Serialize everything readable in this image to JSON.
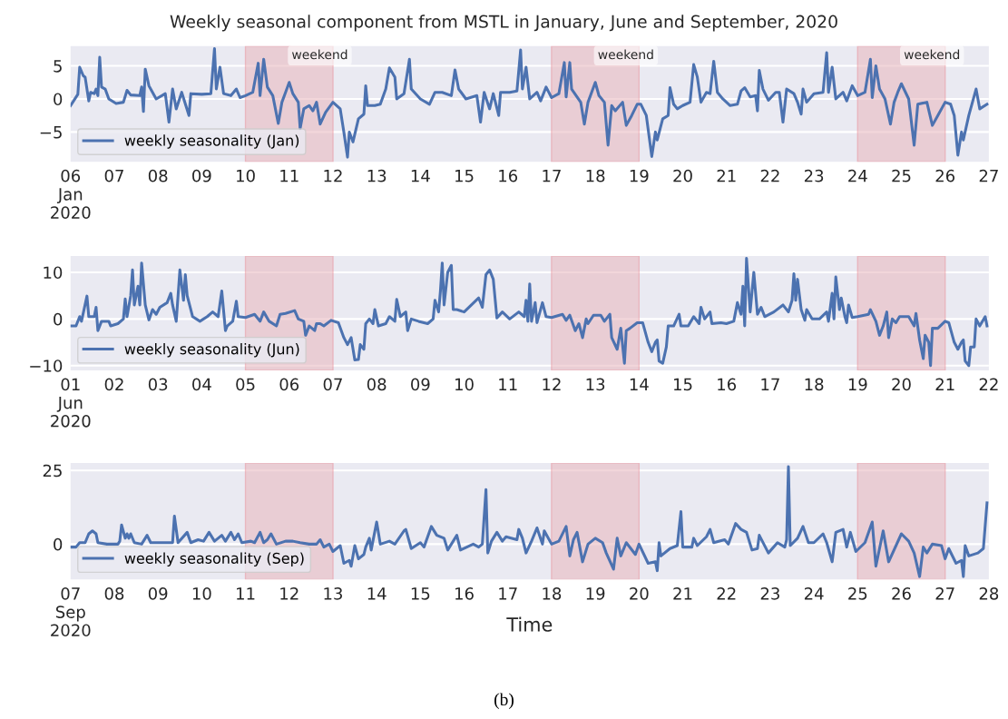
{
  "chart_data": [
    {
      "type": "line",
      "title": "Weekly seasonal component from MSTL in January, June and September, 2020",
      "legend": "bottom left",
      "grid": "y",
      "ylim": [
        -9.5,
        8.0
      ],
      "yticks": [
        {
          "value": -5,
          "label": "−5"
        },
        0,
        5
      ],
      "xlim": [
        "2020-01-06",
        "2020-01-27"
      ],
      "xticks": [
        {
          "value": "2020-01-06",
          "label": "06\nJan\n2020"
        },
        {
          "value": "2020-01-07",
          "label": "07"
        },
        {
          "value": "2020-01-08",
          "label": "08"
        },
        {
          "value": "2020-01-09",
          "label": "09"
        },
        {
          "value": "2020-01-10",
          "label": "10"
        },
        {
          "value": "2020-01-11",
          "label": "11"
        },
        {
          "value": "2020-01-12",
          "label": "12"
        },
        {
          "value": "2020-01-13",
          "label": "13"
        },
        {
          "value": "2020-01-14",
          "label": "14"
        },
        {
          "value": "2020-01-15",
          "label": "15"
        },
        {
          "value": "2020-01-16",
          "label": "16"
        },
        {
          "value": "2020-01-17",
          "label": "17"
        },
        {
          "value": "2020-01-18",
          "label": "18"
        },
        {
          "value": "2020-01-19",
          "label": "19"
        },
        {
          "value": "2020-01-20",
          "label": "20"
        },
        {
          "value": "2020-01-21",
          "label": "21"
        },
        {
          "value": "2020-01-22",
          "label": "22"
        },
        {
          "value": "2020-01-23",
          "label": "23"
        },
        {
          "value": "2020-01-24",
          "label": "24"
        },
        {
          "value": "2020-01-25",
          "label": "25"
        },
        {
          "value": "2020-01-26",
          "label": "26"
        },
        {
          "value": "2020-01-27",
          "label": "27"
        }
      ],
      "bands": [
        {
          "axis": "x",
          "from": "2020-01-10",
          "to": "2020-01-12",
          "label": "weekend",
          "color": "#e8b4bc"
        },
        {
          "axis": "x",
          "from": "2020-01-17",
          "to": "2020-01-19",
          "label": "weekend",
          "color": "#e8b4bc"
        },
        {
          "axis": "x",
          "from": "2020-01-24",
          "to": "2020-01-26",
          "label": "weekend",
          "color": "#e8b4bc"
        }
      ],
      "series": [
        {
          "name": "weekly seasonality (Jan)",
          "color": "#4c72b0",
          "x": [
            "2020-01-06T00:00",
            "2020-01-06T04:00",
            "2020-01-06T05:00",
            "2020-01-06T07:00",
            "2020-01-06T08:00",
            "2020-01-06T10:00",
            "2020-01-06T11:00",
            "2020-01-06T13:00",
            "2020-01-06T14:00",
            "2020-01-06T15:00",
            "2020-01-06T16:00",
            "2020-01-06T17:00",
            "2020-01-06T19:00",
            "2020-01-06T21:00",
            "2020-01-07T01:00",
            "2020-01-07T05:00",
            "2020-01-07T07:00",
            "2020-01-07T09:00",
            "2020-01-07T14:00",
            "2020-01-07T15:00",
            "2020-01-07T16:00",
            "2020-01-07T17:00",
            "2020-01-07T19:00",
            "2020-01-07T23:00",
            "2020-01-08T04:00",
            "2020-01-08T06:00",
            "2020-01-08T08:00",
            "2020-01-08T10:00",
            "2020-01-08T13:00",
            "2020-01-08T17:00",
            "2020-01-08T18:00",
            "2020-01-09T00:00",
            "2020-01-09T05:00",
            "2020-01-09T07:00",
            "2020-01-09T08:00",
            "2020-01-09T10:00",
            "2020-01-09T12:00",
            "2020-01-09T16:00",
            "2020-01-09T19:00",
            "2020-01-09T21:00",
            "2020-01-10T00:00",
            "2020-01-10T04:00",
            "2020-01-10T07:00",
            "2020-01-10T08:00",
            "2020-01-10T10:00",
            "2020-01-10T12:00",
            "2020-01-10T15:00",
            "2020-01-10T18:00",
            "2020-01-10T20:00",
            "2020-01-10T22:00",
            "2020-01-11T00:00",
            "2020-01-11T02:00",
            "2020-01-11T05:00",
            "2020-01-11T06:00",
            "2020-01-11T08:00",
            "2020-01-11T11:00",
            "2020-01-11T13:00",
            "2020-01-11T15:00",
            "2020-01-11T17:00",
            "2020-01-11T20:00",
            "2020-01-12T00:00",
            "2020-01-12T04:00",
            "2020-01-12T06:00",
            "2020-01-12T08:00",
            "2020-01-12T09:00",
            "2020-01-12T11:00",
            "2020-01-12T14:00",
            "2020-01-12T17:00",
            "2020-01-12T18:00",
            "2020-01-12T19:00",
            "2020-01-12T23:00",
            "2020-01-13T02:00",
            "2020-01-13T05:00",
            "2020-01-13T07:00",
            "2020-01-13T10:00",
            "2020-01-13T11:00",
            "2020-01-13T15:00",
            "2020-01-13T18:00",
            "2020-01-13T19:00",
            "2020-01-14T00:00",
            "2020-01-14T05:00",
            "2020-01-14T08:00",
            "2020-01-14T12:00",
            "2020-01-14T17:00",
            "2020-01-14T19:00",
            "2020-01-14T21:00",
            "2020-01-15T01:00",
            "2020-01-15T07:00",
            "2020-01-15T09:00",
            "2020-01-15T11:00",
            "2020-01-15T14:00",
            "2020-01-15T16:00",
            "2020-01-15T19:00",
            "2020-01-15T20:00",
            "2020-01-16T01:00",
            "2020-01-16T05:00",
            "2020-01-16T07:00",
            "2020-01-16T08:00",
            "2020-01-16T10:00",
            "2020-01-16T12:00",
            "2020-01-16T16:00",
            "2020-01-16T18:00",
            "2020-01-16T21:00",
            "2020-01-17T00:00",
            "2020-01-17T04:00",
            "2020-01-17T07:00",
            "2020-01-17T08:00",
            "2020-01-17T10:00",
            "2020-01-17T11:00",
            "2020-01-17T16:00",
            "2020-01-17T18:00",
            "2020-01-17T20:00",
            "2020-01-18T00:00",
            "2020-01-18T02:00",
            "2020-01-18T05:00",
            "2020-01-18T07:00",
            "2020-01-18T09:00",
            "2020-01-18T11:00",
            "2020-01-18T15:00",
            "2020-01-18T17:00",
            "2020-01-18T20:00",
            "2020-01-18T23:00",
            "2020-01-19T01:00",
            "2020-01-19T04:00",
            "2020-01-19T07:00",
            "2020-01-19T09:00",
            "2020-01-19T10:00",
            "2020-01-19T13:00",
            "2020-01-19T16:00",
            "2020-01-19T17:00",
            "2020-01-19T19:00",
            "2020-01-19T21:00",
            "2020-01-20T00:00",
            "2020-01-20T04:00",
            "2020-01-20T06:00",
            "2020-01-20T08:00",
            "2020-01-20T10:00",
            "2020-01-20T13:00",
            "2020-01-20T15:00",
            "2020-01-20T17:00",
            "2020-01-20T19:00",
            "2020-01-20T22:00",
            "2020-01-21T02:00",
            "2020-01-21T06:00",
            "2020-01-21T08:00",
            "2020-01-21T10:00",
            "2020-01-21T13:00",
            "2020-01-21T16:00",
            "2020-01-21T17:00",
            "2020-01-21T18:00",
            "2020-01-21T20:00",
            "2020-01-21T23:00",
            "2020-01-22T03:00",
            "2020-01-22T05:00",
            "2020-01-22T07:00",
            "2020-01-22T09:00",
            "2020-01-22T13:00",
            "2020-01-22T15:00",
            "2020-01-22T17:00",
            "2020-01-22T18:00",
            "2020-01-22T20:00",
            "2020-01-23T00:00",
            "2020-01-23T05:00",
            "2020-01-23T07:00",
            "2020-01-23T08:00",
            "2020-01-23T10:00",
            "2020-01-23T12:00",
            "2020-01-23T16:00",
            "2020-01-23T18:00",
            "2020-01-23T21:00",
            "2020-01-24T00:00",
            "2020-01-24T04:00",
            "2020-01-24T07:00",
            "2020-01-24T08:00",
            "2020-01-24T10:00",
            "2020-01-24T12:00",
            "2020-01-24T15:00",
            "2020-01-24T18:00",
            "2020-01-24T20:00",
            "2020-01-24T22:00",
            "2020-01-25T00:00",
            "2020-01-25T04:00",
            "2020-01-25T07:00",
            "2020-01-25T09:00",
            "2020-01-25T14:00",
            "2020-01-25T17:00",
            "2020-01-25T20:00",
            "2020-01-26T00:00",
            "2020-01-26T03:00",
            "2020-01-26T05:00",
            "2020-01-26T07:00",
            "2020-01-26T09:00",
            "2020-01-26T10:00",
            "2020-01-26T13:00",
            "2020-01-26T17:00",
            "2020-01-26T19:00",
            "2020-01-26T23:00"
          ],
          "values": [
            -1.0,
            0.7,
            4.8,
            3.5,
            3.3,
            -0.3,
            1.0,
            0.8,
            1.5,
            0.5,
            6.3,
            1.8,
            1.5,
            0,
            -0.7,
            -0.5,
            1.3,
            0.6,
            0.5,
            1.8,
            -1.9,
            4.5,
            2.0,
            0,
            0.8,
            -3.5,
            1.5,
            -1.5,
            1.0,
            -2.5,
            0.8,
            0.7,
            0.8,
            7.6,
            1.5,
            4.8,
            0.8,
            0.5,
            1.5,
            0.2,
            0.5,
            1.0,
            5.4,
            0.5,
            6.0,
            1.8,
            0.5,
            -3.7,
            -0.5,
            1.0,
            2.5,
            0.8,
            -0.5,
            -4.5,
            -1.5,
            -1.0,
            -1.8,
            -0.5,
            -3.8,
            -2.0,
            -0.5,
            -1.5,
            -5.0,
            -8.8,
            -5.0,
            -6.5,
            -3.0,
            -2.3,
            2.0,
            -1.0,
            -1.0,
            -0.8,
            1.5,
            4.7,
            3.3,
            0,
            0.8,
            6.0,
            1.5,
            0,
            -0.8,
            1.0,
            1.0,
            0.5,
            4.4,
            1.5,
            0,
            0.5,
            -3.5,
            1.0,
            -1.5,
            0.8,
            -2.5,
            1.0,
            1.0,
            1.2,
            7.4,
            1.5,
            4.8,
            0,
            1.0,
            -0.3,
            1.8,
            0.2,
            0.8,
            5.5,
            0.3,
            5.5,
            1.5,
            -0.5,
            -3.8,
            -0.5,
            2.5,
            0.5,
            -0.5,
            -7.0,
            -1.0,
            -1.8,
            -0.5,
            -4.0,
            -2.5,
            -0.8,
            -0.8,
            -2.5,
            -8.7,
            -5.0,
            -6.2,
            -3.0,
            -2.5,
            1.7,
            -0.8,
            -1.5,
            -1.0,
            -0.5,
            5.2,
            3.3,
            -0.5,
            1.0,
            0.8,
            5.7,
            1.0,
            0,
            -1.0,
            -0.8,
            1.2,
            1.7,
            0.3,
            0.5,
            -1.8,
            4.3,
            1.5,
            -0.2,
            1.0,
            1.0,
            -3.5,
            1.5,
            0.8,
            -0.5,
            -2.3,
            1.5,
            -0.5,
            0.8,
            1.0,
            7.0,
            1.0,
            4.8,
            0,
            1.0,
            -0.3,
            2.0,
            0.5,
            1.0,
            6.0,
            0.2,
            5.0,
            1.5,
            0,
            -3.8,
            -0.5,
            1.0,
            2.3,
            0,
            -7.0,
            -0.8,
            -0.5,
            -4.0,
            -2.5,
            -0.5,
            -0.8,
            -2.5,
            -8.5,
            -5.0,
            -6.2,
            -2.5,
            1.5,
            -1.5,
            -0.8
          ]
        }
      ]
    },
    {
      "type": "line",
      "legend": "bottom left",
      "grid": "y",
      "ylim": [
        -11,
        13.5
      ],
      "yticks": [
        {
          "value": -10,
          "label": "−10"
        },
        0,
        10
      ],
      "xlim": [
        "2020-06-01",
        "2020-06-22"
      ],
      "xticks": [
        {
          "value": "2020-06-01",
          "label": "01\nJun\n2020"
        },
        {
          "value": "2020-06-02",
          "label": "02"
        },
        {
          "value": "2020-06-03",
          "label": "03"
        },
        {
          "value": "2020-06-04",
          "label": "04"
        },
        {
          "value": "2020-06-05",
          "label": "05"
        },
        {
          "value": "2020-06-06",
          "label": "06"
        },
        {
          "value": "2020-06-07",
          "label": "07"
        },
        {
          "value": "2020-06-08",
          "label": "08"
        },
        {
          "value": "2020-06-09",
          "label": "09"
        },
        {
          "value": "2020-06-10",
          "label": "10"
        },
        {
          "value": "2020-06-11",
          "label": "11"
        },
        {
          "value": "2020-06-12",
          "label": "12"
        },
        {
          "value": "2020-06-13",
          "label": "13"
        },
        {
          "value": "2020-06-14",
          "label": "14"
        },
        {
          "value": "2020-06-15",
          "label": "15"
        },
        {
          "value": "2020-06-16",
          "label": "16"
        },
        {
          "value": "2020-06-17",
          "label": "17"
        },
        {
          "value": "2020-06-18",
          "label": "18"
        },
        {
          "value": "2020-06-19",
          "label": "19"
        },
        {
          "value": "2020-06-20",
          "label": "20"
        },
        {
          "value": "2020-06-21",
          "label": "21"
        },
        {
          "value": "2020-06-22",
          "label": "22"
        }
      ],
      "bands": [
        {
          "axis": "x",
          "from": "2020-06-05",
          "to": "2020-06-07",
          "color": "#e8b4bc"
        },
        {
          "axis": "x",
          "from": "2020-06-12",
          "to": "2020-06-14",
          "color": "#e8b4bc"
        },
        {
          "axis": "x",
          "from": "2020-06-19",
          "to": "2020-06-21",
          "color": "#e8b4bc"
        }
      ],
      "series": [
        {
          "name": "weekly seasonality (Jun)",
          "color": "#4c72b0",
          "x": [
            "2020-06-01T00:00",
            "2020-06-01T03:00",
            "2020-06-01T05:00",
            "2020-06-01T06:00",
            "2020-06-01T09:00",
            "2020-06-01T10:00",
            "2020-06-01T13:00",
            "2020-06-01T14:00",
            "2020-06-01T15:00",
            "2020-06-01T17:00",
            "2020-06-01T21:00",
            "2020-06-01T22:00",
            "2020-06-02T02:00",
            "2020-06-02T05:00",
            "2020-06-02T06:00",
            "2020-06-02T07:00",
            "2020-06-02T09:00",
            "2020-06-02T10:00",
            "2020-06-02T11:00",
            "2020-06-02T13:00",
            "2020-06-02T14:00",
            "2020-06-02T15:00",
            "2020-06-02T17:00",
            "2020-06-02T19:00",
            "2020-06-02T21:00",
            "2020-06-02T23:00",
            "2020-06-03T01:00",
            "2020-06-03T05:00",
            "2020-06-03T07:00",
            "2020-06-03T08:00",
            "2020-06-03T10:00",
            "2020-06-03T12:00",
            "2020-06-03T14:00",
            "2020-06-03T15:00",
            "2020-06-03T16:00",
            "2020-06-03T19:00",
            "2020-06-03T23:00",
            "2020-06-04T03:00",
            "2020-06-04T06:00",
            "2020-06-04T09:00",
            "2020-06-04T11:00",
            "2020-06-04T13:00",
            "2020-06-04T14:00",
            "2020-06-04T17:00",
            "2020-06-04T19:00",
            "2020-06-04T20:00",
            "2020-06-05T00:00",
            "2020-06-05T05:00",
            "2020-06-05T08:00",
            "2020-06-05T10:00",
            "2020-06-05T13:00",
            "2020-06-05T17:00",
            "2020-06-05T19:00",
            "2020-06-05T22:00",
            "2020-06-06T03:00",
            "2020-06-06T05:00",
            "2020-06-06T08:00",
            "2020-06-06T09:00",
            "2020-06-06T11:00",
            "2020-06-06T14:00",
            "2020-06-06T15:00",
            "2020-06-06T17:00",
            "2020-06-06T19:00",
            "2020-06-06T23:00",
            "2020-06-07T03:00",
            "2020-06-07T06:00",
            "2020-06-07T08:00",
            "2020-06-07T10:00",
            "2020-06-07T12:00",
            "2020-06-07T14:00",
            "2020-06-07T15:00",
            "2020-06-07T17:00",
            "2020-06-07T18:00",
            "2020-06-07T20:00",
            "2020-06-07T22:00",
            "2020-06-07T23:00",
            "2020-06-08T01:00",
            "2020-06-08T05:00",
            "2020-06-08T07:00",
            "2020-06-08T10:00",
            "2020-06-08T11:00",
            "2020-06-08T13:00",
            "2020-06-08T16:00",
            "2020-06-08T17:00",
            "2020-06-08T19:00",
            "2020-06-08T23:00",
            "2020-06-09T04:00",
            "2020-06-09T07:00",
            "2020-06-09T08:00",
            "2020-06-09T10:00",
            "2020-06-09T11:00",
            "2020-06-09T12:00",
            "2020-06-09T13:00",
            "2020-06-09T15:00",
            "2020-06-09T17:00",
            "2020-06-09T18:00",
            "2020-06-09T20:00",
            "2020-06-10T00:00",
            "2020-06-10T04:00",
            "2020-06-10T08:00",
            "2020-06-10T10:00",
            "2020-06-10T12:00",
            "2020-06-10T14:00",
            "2020-06-10T16:00",
            "2020-06-10T18:00",
            "2020-06-10T21:00",
            "2020-06-11T01:00",
            "2020-06-11T06:00",
            "2020-06-11T09:00",
            "2020-06-11T10:00",
            "2020-06-11T11:00",
            "2020-06-11T12:00",
            "2020-06-11T13:00",
            "2020-06-11T15:00",
            "2020-06-11T16:00",
            "2020-06-11T19:00",
            "2020-06-11T21:00",
            "2020-06-12T00:00",
            "2020-06-12T06:00",
            "2020-06-12T08:00",
            "2020-06-12T10:00",
            "2020-06-12T13:00",
            "2020-06-12T15:00",
            "2020-06-12T17:00",
            "2020-06-12T19:00",
            "2020-06-12T20:00",
            "2020-06-12T23:00",
            "2020-06-13T03:00",
            "2020-06-13T05:00",
            "2020-06-13T08:00",
            "2020-06-13T09:00",
            "2020-06-13T12:00",
            "2020-06-13T14:00",
            "2020-06-13T16:00",
            "2020-06-13T17:00",
            "2020-06-13T19:00",
            "2020-06-13T23:00",
            "2020-06-14T02:00",
            "2020-06-14T05:00",
            "2020-06-14T07:00",
            "2020-06-14T09:00",
            "2020-06-14T10:00",
            "2020-06-14T11:00",
            "2020-06-14T13:00",
            "2020-06-14T15:00",
            "2020-06-14T16:00",
            "2020-06-14T19:00",
            "2020-06-14T22:00",
            "2020-06-14T23:00",
            "2020-06-15T03:00",
            "2020-06-15T06:00",
            "2020-06-15T09:00",
            "2020-06-15T10:00",
            "2020-06-15T12:00",
            "2020-06-15T15:00",
            "2020-06-15T16:00",
            "2020-06-15T21:00",
            "2020-06-16T00:00",
            "2020-06-16T04:00",
            "2020-06-16T06:00",
            "2020-06-16T08:00",
            "2020-06-16T09:00",
            "2020-06-16T10:00",
            "2020-06-16T11:00",
            "2020-06-16T13:00",
            "2020-06-16T15:00",
            "2020-06-16T17:00",
            "2020-06-16T19:00",
            "2020-06-16T21:00",
            "2020-06-17T02:00",
            "2020-06-17T07:00",
            "2020-06-17T10:00",
            "2020-06-17T12:00",
            "2020-06-17T13:00",
            "2020-06-17T14:00",
            "2020-06-17T15:00",
            "2020-06-17T17:00",
            "2020-06-17T19:00",
            "2020-06-17T20:00",
            "2020-06-17T23:00",
            "2020-06-18T03:00",
            "2020-06-18T07:00",
            "2020-06-18T08:00",
            "2020-06-18T10:00",
            "2020-06-18T11:00",
            "2020-06-18T12:00",
            "2020-06-18T14:00",
            "2020-06-18T15:00",
            "2020-06-18T17:00",
            "2020-06-18T18:00",
            "2020-06-18T19:00",
            "2020-06-18T21:00",
            "2020-06-19T00:00",
            "2020-06-19T06:00",
            "2020-06-19T07:00",
            "2020-06-19T10:00",
            "2020-06-19T12:00",
            "2020-06-19T14:00",
            "2020-06-19T16:00",
            "2020-06-19T17:00",
            "2020-06-19T19:00",
            "2020-06-19T21:00",
            "2020-06-19T23:00",
            "2020-06-20T04:00",
            "2020-06-20T07:00",
            "2020-06-20T08:00",
            "2020-06-20T10:00",
            "2020-06-20T12:00",
            "2020-06-20T13:00",
            "2020-06-20T15:00",
            "2020-06-20T16:00",
            "2020-06-20T17:00",
            "2020-06-20T20:00",
            "2020-06-21T00:00",
            "2020-06-21T02:00",
            "2020-06-21T05:00",
            "2020-06-21T07:00",
            "2020-06-21T09:00",
            "2020-06-21T10:00",
            "2020-06-21T11:00",
            "2020-06-21T13:00",
            "2020-06-21T14:00",
            "2020-06-21T16:00",
            "2020-06-21T17:00",
            "2020-06-21T19:00",
            "2020-06-21T22:00",
            "2020-06-21T23:00"
          ],
          "values": [
            -1.5,
            -1.5,
            0.5,
            -0.5,
            4.9,
            0.5,
            0.5,
            2.5,
            -2.5,
            -0.5,
            -0.5,
            -1.5,
            -1.0,
            0,
            4.3,
            0.5,
            5.0,
            10.5,
            3.0,
            7.0,
            3.0,
            12.0,
            3.0,
            -0.2,
            2.0,
            1.0,
            2.5,
            3.5,
            5.5,
            3.0,
            -0.5,
            10.5,
            4.0,
            9.5,
            5.0,
            0.5,
            -0.5,
            0.5,
            1.5,
            0.5,
            6.0,
            -2.5,
            -1.5,
            -0.5,
            3.8,
            0.5,
            0.3,
            1.0,
            -0.5,
            1.5,
            -0.5,
            -1.5,
            1.0,
            1.2,
            1.8,
            0,
            -0.5,
            -3.5,
            -1.5,
            -2.5,
            -1.0,
            -1.0,
            -1.5,
            -0.3,
            -0.8,
            -4.0,
            -5.5,
            -4.0,
            -8.8,
            -8.7,
            -5.5,
            -6.5,
            -1.0,
            0,
            -1.0,
            2.0,
            -1.5,
            -1.0,
            0.5,
            -0.5,
            4.2,
            0.5,
            1.5,
            -2.5,
            0,
            -0.5,
            -1.0,
            0,
            4.0,
            1.5,
            6.0,
            12.0,
            3.0,
            10.0,
            11.5,
            2.0,
            2.0,
            1.5,
            3.0,
            4.5,
            2.5,
            9.5,
            10.5,
            8.5,
            0.2,
            1.5,
            0,
            1.5,
            0.5,
            4.0,
            -0.5,
            7.5,
            -0.5,
            3.5,
            -0.8,
            3.5,
            0.5,
            0.3,
            1.0,
            -0.3,
            0.8,
            -2.5,
            -1.0,
            -4.0,
            0,
            -1.0,
            0.8,
            0.8,
            -0.5,
            1.0,
            -4.0,
            -6.5,
            -2.0,
            -9.5,
            -2.5,
            -2.0,
            -0.8,
            -0.8,
            -5.0,
            -7.0,
            -5.0,
            -4.5,
            -9.0,
            -9.5,
            -6.0,
            -1.5,
            -1.5,
            1.0,
            -1.5,
            -1.5,
            0.5,
            -1.0,
            2.5,
            0,
            1.5,
            -1.0,
            -0.8,
            -1.0,
            -0.5,
            3.5,
            1.0,
            7.0,
            -1.5,
            13.0,
            1.5,
            10.0,
            1.0,
            2.5,
            0.5,
            1.5,
            3.0,
            1.5,
            4.0,
            9.7,
            4.0,
            8.5,
            2.0,
            -0.3,
            2.0,
            0,
            0,
            1.5,
            -0.5,
            5.5,
            0,
            9.0,
            2.0,
            4.5,
            0.5,
            -0.8,
            3.0,
            0.3,
            0.5,
            1.0,
            2.0,
            -0.5,
            -3.5,
            -1.5,
            1.5,
            -4.0,
            0,
            -0.8,
            0.5,
            0.5,
            -1.5,
            1.2,
            -4.5,
            -8.5,
            -3.5,
            -5.0,
            -10.0,
            -2.0,
            -2.0,
            -0.5,
            -0.8,
            -5.0,
            -6.5,
            -5.0,
            -4.5,
            -9.0,
            -10.0,
            -6.0,
            -6.0,
            0,
            -1.5,
            0.5,
            -1.5
          ]
        }
      ]
    },
    {
      "type": "line",
      "xlabel": "Time",
      "annotations": [
        "(b)"
      ],
      "legend": "bottom left",
      "grid": "y",
      "ylim": [
        -12,
        27.5
      ],
      "yticks": [
        0,
        25
      ],
      "xlim": [
        "2020-09-07",
        "2020-09-28"
      ],
      "xticks": [
        {
          "value": "2020-09-07",
          "label": "07\nSep\n2020"
        },
        {
          "value": "2020-09-08",
          "label": "08"
        },
        {
          "value": "2020-09-09",
          "label": "09"
        },
        {
          "value": "2020-09-10",
          "label": "10"
        },
        {
          "value": "2020-09-11",
          "label": "11"
        },
        {
          "value": "2020-09-12",
          "label": "12"
        },
        {
          "value": "2020-09-13",
          "label": "13"
        },
        {
          "value": "2020-09-14",
          "label": "14"
        },
        {
          "value": "2020-09-15",
          "label": "15"
        },
        {
          "value": "2020-09-16",
          "label": "16"
        },
        {
          "value": "2020-09-17",
          "label": "17"
        },
        {
          "value": "2020-09-18",
          "label": "18"
        },
        {
          "value": "2020-09-19",
          "label": "19"
        },
        {
          "value": "2020-09-20",
          "label": "20"
        },
        {
          "value": "2020-09-21",
          "label": "21"
        },
        {
          "value": "2020-09-22",
          "label": "22"
        },
        {
          "value": "2020-09-23",
          "label": "23"
        },
        {
          "value": "2020-09-24",
          "label": "24"
        },
        {
          "value": "2020-09-25",
          "label": "25"
        },
        {
          "value": "2020-09-26",
          "label": "26"
        },
        {
          "value": "2020-09-27",
          "label": "27"
        },
        {
          "value": "2020-09-28",
          "label": "28"
        }
      ],
      "bands": [
        {
          "axis": "x",
          "from": "2020-09-11",
          "to": "2020-09-13",
          "color": "#e8b4bc"
        },
        {
          "axis": "x",
          "from": "2020-09-18",
          "to": "2020-09-20",
          "color": "#e8b4bc"
        },
        {
          "axis": "x",
          "from": "2020-09-25",
          "to": "2020-09-27",
          "color": "#e8b4bc"
        }
      ],
      "series": [
        {
          "name": "weekly seasonality (Sep)",
          "color": "#4c72b0",
          "x": [
            "2020-09-07T00:00",
            "2020-09-07T03:00",
            "2020-09-07T05:00",
            "2020-09-07T08:00",
            "2020-09-07T10:00",
            "2020-09-07T12:00",
            "2020-09-07T14:00",
            "2020-09-07T15:00",
            "2020-09-07T20:00",
            "2020-09-08T02:00",
            "2020-09-08T03:00",
            "2020-09-08T04:00",
            "2020-09-08T06:00",
            "2020-09-08T07:00",
            "2020-09-08T08:00",
            "2020-09-08T09:00",
            "2020-09-08T11:00",
            "2020-09-08T15:00",
            "2020-09-08T18:00",
            "2020-09-08T20:00",
            "2020-09-09T08:00",
            "2020-09-09T09:00",
            "2020-09-09T11:00",
            "2020-09-09T16:00",
            "2020-09-09T18:00",
            "2020-09-09T22:00",
            "2020-09-10T01:00",
            "2020-09-10T04:00",
            "2020-09-10T07:00",
            "2020-09-10T11:00",
            "2020-09-10T13:00",
            "2020-09-10T16:00",
            "2020-09-10T18:00",
            "2020-09-10T20:00",
            "2020-09-10T22:00",
            "2020-09-11T03:00",
            "2020-09-11T05:00",
            "2020-09-11T08:00",
            "2020-09-11T10:00",
            "2020-09-11T12:00",
            "2020-09-11T14:00",
            "2020-09-11T17:00",
            "2020-09-11T22:00",
            "2020-09-12T02:00",
            "2020-09-12T06:00",
            "2020-09-12T11:00",
            "2020-09-12T15:00",
            "2020-09-12T17:00",
            "2020-09-12T19:00",
            "2020-09-12T22:00",
            "2020-09-13T00:00",
            "2020-09-13T04:00",
            "2020-09-13T06:00",
            "2020-09-13T09:00",
            "2020-09-13T10:00",
            "2020-09-13T12:00",
            "2020-09-13T14:00",
            "2020-09-13T17:00",
            "2020-09-13T18:00",
            "2020-09-13T20:00",
            "2020-09-13T21:00",
            "2020-09-14T00:00",
            "2020-09-14T02:00",
            "2020-09-14T07:00",
            "2020-09-14T10:00",
            "2020-09-14T15:00",
            "2020-09-14T16:00",
            "2020-09-14T19:00",
            "2020-09-15T00:00",
            "2020-09-15T02:00",
            "2020-09-15T06:00",
            "2020-09-15T09:00",
            "2020-09-15T13:00",
            "2020-09-15T15:00",
            "2020-09-15T20:00",
            "2020-09-15T22:00",
            "2020-09-16T05:00",
            "2020-09-16T08:00",
            "2020-09-16T10:00",
            "2020-09-16T12:00",
            "2020-09-16T13:00",
            "2020-09-16T15:00",
            "2020-09-16T18:00",
            "2020-09-16T21:00",
            "2020-09-16T23:00",
            "2020-09-17T05:00",
            "2020-09-17T06:00",
            "2020-09-17T08:00",
            "2020-09-17T10:00",
            "2020-09-17T13:00",
            "2020-09-17T16:00",
            "2020-09-17T19:00",
            "2020-09-17T20:00",
            "2020-09-18T00:00",
            "2020-09-18T04:00",
            "2020-09-18T08:00",
            "2020-09-18T10:00",
            "2020-09-18T12:00",
            "2020-09-18T14:00",
            "2020-09-18T17:00",
            "2020-09-18T20:00",
            "2020-09-19T00:00",
            "2020-09-19T04:00",
            "2020-09-19T06:00",
            "2020-09-19T10:00",
            "2020-09-19T12:00",
            "2020-09-19T14:00",
            "2020-09-19T17:00",
            "2020-09-19T22:00",
            "2020-09-20T00:00",
            "2020-09-20T05:00",
            "2020-09-20T09:00",
            "2020-09-20T10:00",
            "2020-09-20T11:00",
            "2020-09-20T12:00",
            "2020-09-20T17:00",
            "2020-09-20T21:00",
            "2020-09-20T23:00",
            "2020-09-21T00:00",
            "2020-09-21T05:00",
            "2020-09-21T06:00",
            "2020-09-21T08:00",
            "2020-09-21T13:00",
            "2020-09-21T15:00",
            "2020-09-21T17:00",
            "2020-09-21T23:00",
            "2020-09-22T01:00",
            "2020-09-22T05:00",
            "2020-09-22T08:00",
            "2020-09-22T11:00",
            "2020-09-22T14:00",
            "2020-09-22T17:00",
            "2020-09-22T18:00",
            "2020-09-22T23:00",
            "2020-09-23T04:00",
            "2020-09-23T08:00",
            "2020-09-23T09:00",
            "2020-09-23T10:00",
            "2020-09-23T11:00",
            "2020-09-23T15:00",
            "2020-09-23T18:00",
            "2020-09-23T21:00",
            "2020-09-24T00:00",
            "2020-09-24T05:00",
            "2020-09-24T07:00",
            "2020-09-24T10:00",
            "2020-09-24T12:00",
            "2020-09-24T16:00",
            "2020-09-24T18:00",
            "2020-09-24T20:00",
            "2020-09-24T23:00",
            "2020-09-25T04:00",
            "2020-09-25T08:00",
            "2020-09-25T10:00",
            "2020-09-25T14:00",
            "2020-09-25T17:00",
            "2020-09-26T00:00",
            "2020-09-26T04:00",
            "2020-09-26T07:00",
            "2020-09-26T10:00",
            "2020-09-26T12:00",
            "2020-09-26T14:00",
            "2020-09-26T17:00",
            "2020-09-26T22:00",
            "2020-09-27T00:00",
            "2020-09-27T02:00",
            "2020-09-27T06:00",
            "2020-09-27T09:00",
            "2020-09-27T10:00",
            "2020-09-27T11:00",
            "2020-09-27T13:00",
            "2020-09-27T18:00",
            "2020-09-27T21:00",
            "2020-09-27T23:00"
          ],
          "values": [
            -1.0,
            -1.0,
            0.5,
            0.5,
            3.5,
            4.5,
            3.5,
            0.5,
            0,
            0,
            1.0,
            6.5,
            2.0,
            3.5,
            2.0,
            3.5,
            0.5,
            0,
            3.0,
            0.5,
            0.5,
            9.5,
            0.5,
            4.0,
            0.5,
            1.5,
            1.0,
            4.0,
            1.0,
            3.0,
            1.0,
            4.0,
            1.5,
            3.5,
            0.5,
            1.0,
            0.5,
            4.0,
            0.5,
            1.5,
            3.5,
            0,
            1.0,
            1.0,
            0.5,
            0,
            0,
            1.5,
            -1.0,
            0,
            -2.5,
            -0.5,
            -6.5,
            -5.5,
            -7.5,
            -0.5,
            -5.0,
            -3.5,
            -1.0,
            2.0,
            -2.0,
            7.5,
            0,
            1.0,
            0,
            4.5,
            5.0,
            -1.5,
            0.5,
            -1.0,
            6.0,
            3.0,
            2.0,
            -2.0,
            3.0,
            -2.0,
            0,
            -1.0,
            0,
            18.5,
            -3.0,
            1.0,
            4.0,
            1.0,
            2.5,
            1.5,
            5.0,
            2.0,
            -3.0,
            1.0,
            5.5,
            0,
            4.5,
            0,
            1.0,
            6.0,
            -4.0,
            1.5,
            4.0,
            -6.0,
            0,
            2.0,
            0.5,
            -3.0,
            -8.5,
            2.0,
            -4.0,
            0.5,
            -3.5,
            0,
            -6.5,
            -6.0,
            -9.0,
            0.5,
            -4.0,
            -1.5,
            -0.5,
            11.0,
            -1.0,
            -1.0,
            2.0,
            -0.5,
            2.5,
            5.0,
            0.5,
            1.5,
            0,
            7.0,
            5.0,
            4.0,
            -2.0,
            -1.5,
            3.0,
            -3.0,
            0.5,
            -1.0,
            1.5,
            26.3,
            -0.5,
            2.0,
            6.0,
            0.5,
            0.5,
            3.5,
            0.5,
            -6.0,
            4.0,
            5.0,
            -1.0,
            4.0,
            -2.5,
            0.5,
            7.5,
            -7.5,
            4.5,
            -6.0,
            3.5,
            1.0,
            -3.0,
            -11.0,
            -1.0,
            -3.0,
            0,
            -0.5,
            -5.0,
            -1.5,
            -6.5,
            -5.5,
            -11.0,
            -0.5,
            -4.0,
            -3.0,
            -1.5,
            14.0
          ]
        }
      ]
    }
  ]
}
